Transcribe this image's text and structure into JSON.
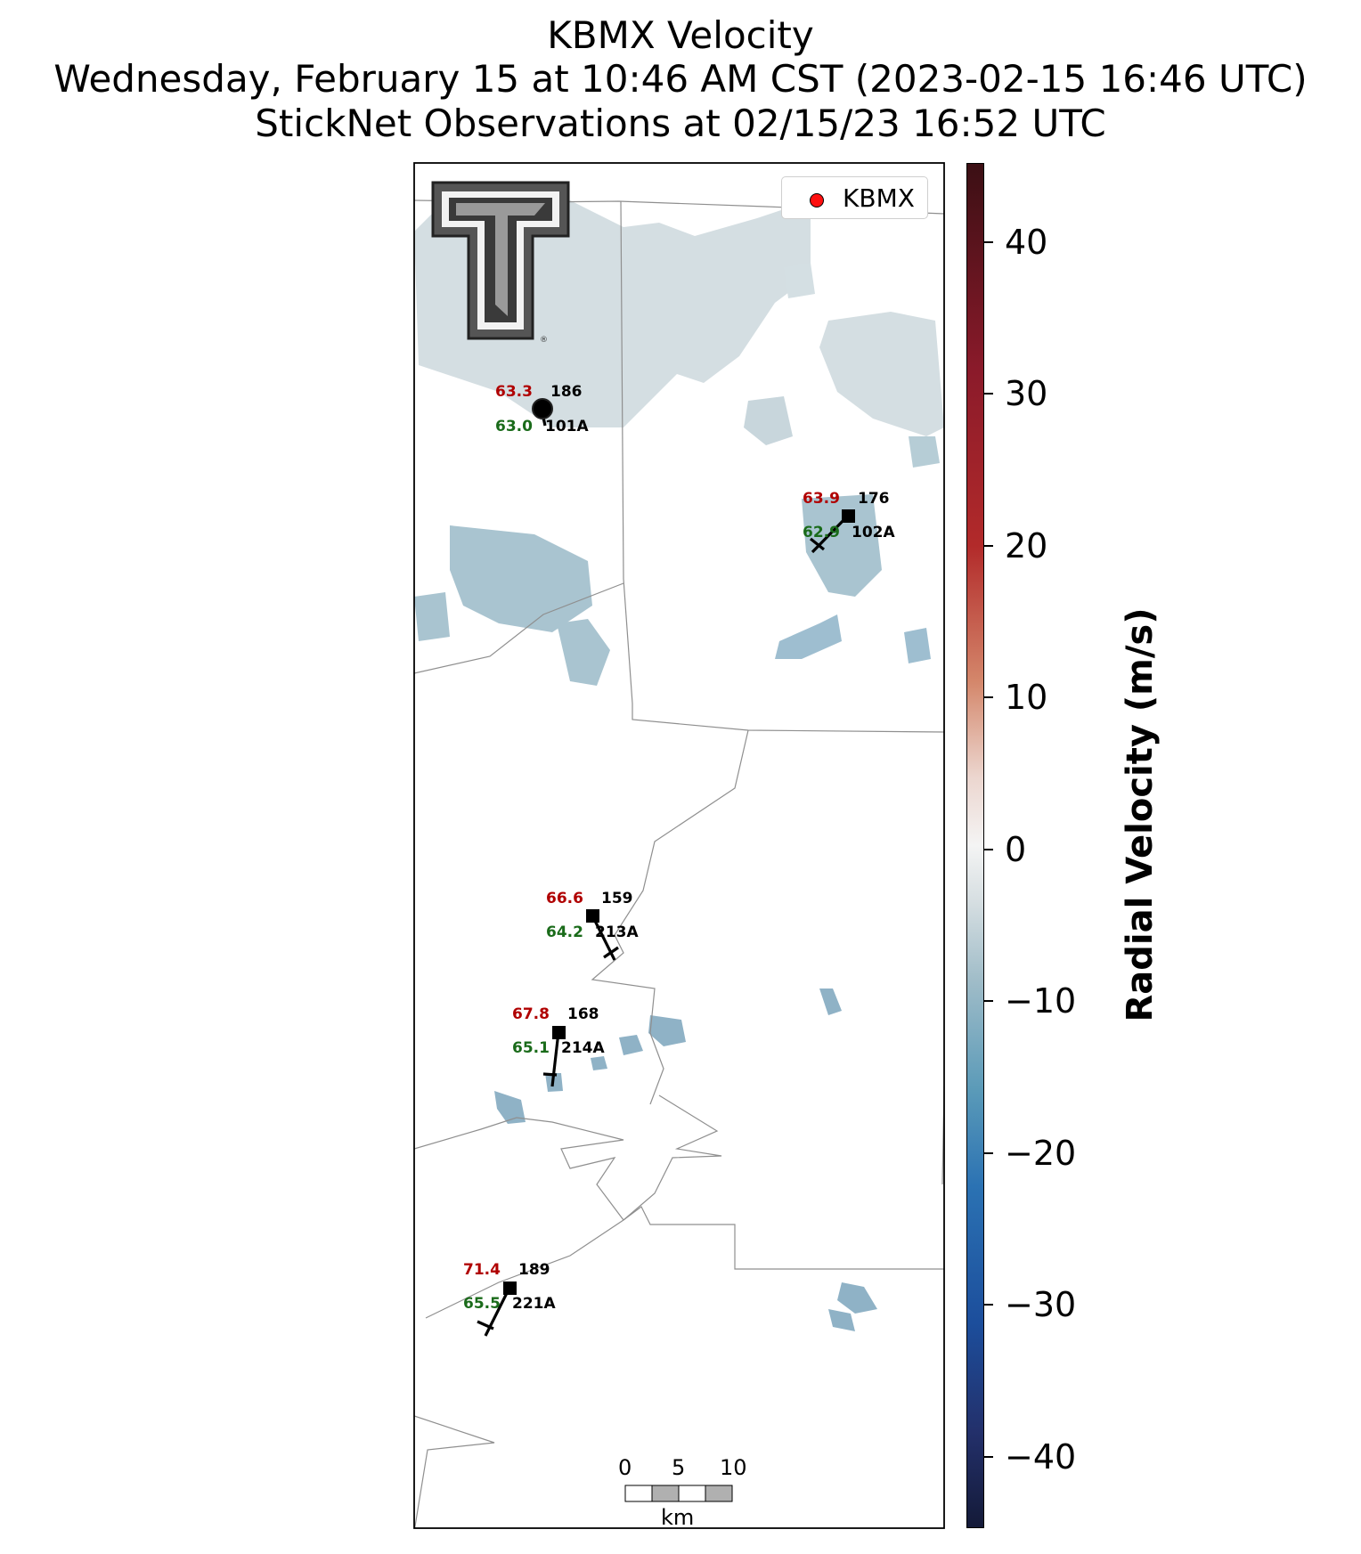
{
  "title": {
    "line1": "KBMX Velocity",
    "line2": "Wednesday, February 15 at 10:46 AM CST (2023-02-15 16:46 UTC)",
    "line3": "StickNet Observations at 02/15/23 16:52 UTC"
  },
  "legend": {
    "label": "KBMX",
    "marker_color": "#ff1010"
  },
  "colorbar": {
    "label": "Radial Velocity (m/s)",
    "ticks": [
      "40",
      "30",
      "20",
      "10",
      "0",
      "−10",
      "−20",
      "−30",
      "−40"
    ]
  },
  "stations": [
    {
      "id": "101A",
      "temp": "63.3",
      "dew": "63.0",
      "dir": "186"
    },
    {
      "id": "102A",
      "temp": "63.9",
      "dew": "62.9",
      "dir": "176"
    },
    {
      "id": "213A",
      "temp": "66.6",
      "dew": "64.2",
      "dir": "159"
    },
    {
      "id": "214A",
      "temp": "67.8",
      "dew": "65.1",
      "dir": "168"
    },
    {
      "id": "221A",
      "temp": "71.4",
      "dew": "65.5",
      "dir": "189"
    }
  ],
  "scalebar": {
    "ticks": [
      "0",
      "5",
      "10"
    ],
    "unit": "km"
  },
  "logo": {
    "name": "texas-tech-logo-icon"
  }
}
